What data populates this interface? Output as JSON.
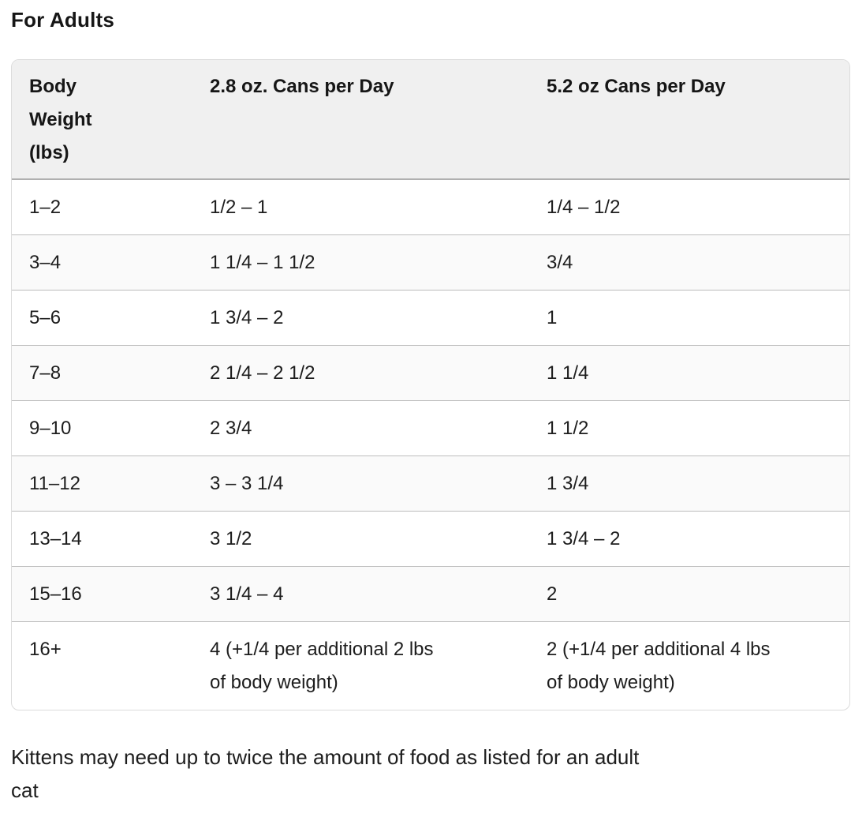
{
  "heading": "For Adults",
  "table": {
    "columns": [
      "Body Weight (lbs)",
      "2.8 oz. Cans per Day",
      "5.2 oz Cans per Day"
    ],
    "rows": [
      {
        "weight": "1–2",
        "cans_2_8": "1/2 – 1",
        "cans_5_2": "1/4 – 1/2"
      },
      {
        "weight": "3–4",
        "cans_2_8": "1 1/4 – 1 1/2",
        "cans_5_2": "3/4"
      },
      {
        "weight": "5–6",
        "cans_2_8": "1 3/4 – 2",
        "cans_5_2": "1"
      },
      {
        "weight": "7–8",
        "cans_2_8": "2 1/4 – 2 1/2",
        "cans_5_2": "1 1/4"
      },
      {
        "weight": "9–10",
        "cans_2_8": "2 3/4",
        "cans_5_2": "1 1/2"
      },
      {
        "weight": "11–12",
        "cans_2_8": "3 – 3 1/4",
        "cans_5_2": "1 3/4"
      },
      {
        "weight": "13–14",
        "cans_2_8": "3 1/2",
        "cans_5_2": "1 3/4 – 2"
      },
      {
        "weight": "15–16",
        "cans_2_8": "3 1/4 – 4",
        "cans_5_2": "2"
      },
      {
        "weight": "16+",
        "cans_2_8": "4 (+1/4 per additional 2 lbs of body weight)",
        "cans_5_2": "2 (+1/4 per additional 4 lbs of body weight)"
      }
    ]
  },
  "note": "Kittens may need up to twice the amount of food as listed for an adult cat"
}
